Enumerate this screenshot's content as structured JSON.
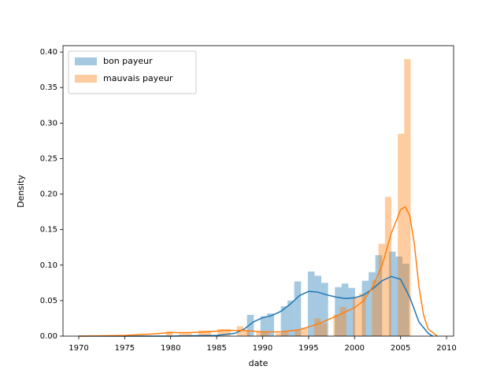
{
  "chart_data": {
    "type": "histogram",
    "xlabel": "date",
    "ylabel": "Density",
    "xlim": [
      1968.29,
      2010.77
    ],
    "ylim": [
      0,
      0.409
    ],
    "xticks": [
      1970,
      1975,
      1980,
      1985,
      1990,
      1995,
      2000,
      2005,
      2010
    ],
    "yticks": [
      {
        "value": 0,
        "label": "0.00"
      },
      {
        "value": 0.05,
        "label": "0.05"
      },
      {
        "value": 0.1,
        "label": "0.10"
      },
      {
        "value": 0.15,
        "label": "0.15"
      },
      {
        "value": 0.2,
        "label": "0.20"
      },
      {
        "value": 0.25,
        "label": "0.25"
      },
      {
        "value": 0.3,
        "label": "0.30"
      },
      {
        "value": 0.35,
        "label": "0.35"
      },
      {
        "value": 0.4,
        "label": "0.40"
      }
    ],
    "legend": "upper left",
    "bar_opacity": 0.4,
    "series": [
      {
        "name": "bon payeur",
        "color": "#1f77b4",
        "bins": [
          1988.3,
          1989.04,
          1989.77,
          1990.5,
          1991.24,
          1991.98,
          1992.71,
          1993.44,
          1994.18,
          1994.92,
          1995.65,
          1996.38,
          1997.12,
          1997.86,
          1998.59,
          1999.32,
          2000.06,
          2000.8,
          2001.53,
          2002.26,
          2003.0,
          2003.74,
          2004.47,
          2005.2,
          2005.94
        ],
        "values": [
          0.03,
          0,
          0.028,
          0.032,
          0,
          0.042,
          0.05,
          0.077,
          0,
          0.091,
          0.085,
          0.075,
          0,
          0.069,
          0.074,
          0.068,
          0,
          0.078,
          0.09,
          0.114,
          0,
          0.119,
          0.112,
          0.102
        ],
        "kde_x": [
          1970,
          1980,
          1985,
          1987,
          1988,
          1989,
          1990,
          1991,
          1992,
          1993,
          1994,
          1995,
          1996,
          1997,
          1998,
          1999,
          2000,
          2001,
          2002,
          2003,
          2004,
          2005,
          2006,
          2007,
          2008,
          2008.5
        ],
        "kde_values": [
          0,
          0,
          0.001,
          0.004,
          0.01,
          0.02,
          0.026,
          0.029,
          0.035,
          0.045,
          0.057,
          0.063,
          0.062,
          0.058,
          0.055,
          0.053,
          0.054,
          0.058,
          0.067,
          0.078,
          0.084,
          0.08,
          0.055,
          0.02,
          0.004,
          0
        ]
      },
      {
        "name": "mauvais payeur",
        "color": "#ff7f0e",
        "bins": [
          1979.5,
          1980.2,
          1980.9,
          1981.6,
          1982.3,
          1983.0,
          1983.7,
          1984.4,
          1985.1,
          1985.8,
          1986.5,
          1987.2,
          1987.9,
          1988.6,
          1989.3,
          1990.0,
          1990.7,
          1991.4,
          1992.1,
          1992.8,
          1993.5,
          1994.2,
          1994.9,
          1995.6,
          1996.3,
          1997.0,
          1997.7,
          1998.4,
          1999.1,
          1999.8,
          2000.5,
          2001.2,
          2001.9,
          2002.6,
          2003.3,
          2004.0,
          2004.7,
          2005.4,
          2006.1
        ],
        "values": [
          0.007,
          0,
          0.004,
          0.004,
          0,
          0.008,
          0.008,
          0,
          0.01,
          0.01,
          0,
          0.014,
          0.008,
          0,
          0.006,
          0.006,
          0,
          0.004,
          0.006,
          0,
          0.008,
          0.012,
          0,
          0.025,
          0.018,
          0,
          0.03,
          0.041,
          0,
          0.055,
          0.06,
          0,
          0.079,
          0.13,
          0.196,
          0,
          0.285,
          0.39
        ],
        "kde_x": [
          1970,
          1975,
          1978,
          1980,
          1982,
          1984,
          1986,
          1988,
          1990,
          1992,
          1994,
          1996,
          1998,
          2000,
          2001,
          2002,
          2003,
          2004,
          2005,
          2005.5,
          2006,
          2006.5,
          2007,
          2007.5,
          2008,
          2009
        ],
        "kde_values": [
          0,
          0.001,
          0.003,
          0.005,
          0.005,
          0.006,
          0.008,
          0.008,
          0.006,
          0.006,
          0.009,
          0.017,
          0.028,
          0.04,
          0.05,
          0.07,
          0.1,
          0.145,
          0.178,
          0.182,
          0.17,
          0.13,
          0.07,
          0.03,
          0.01,
          0
        ]
      }
    ]
  }
}
